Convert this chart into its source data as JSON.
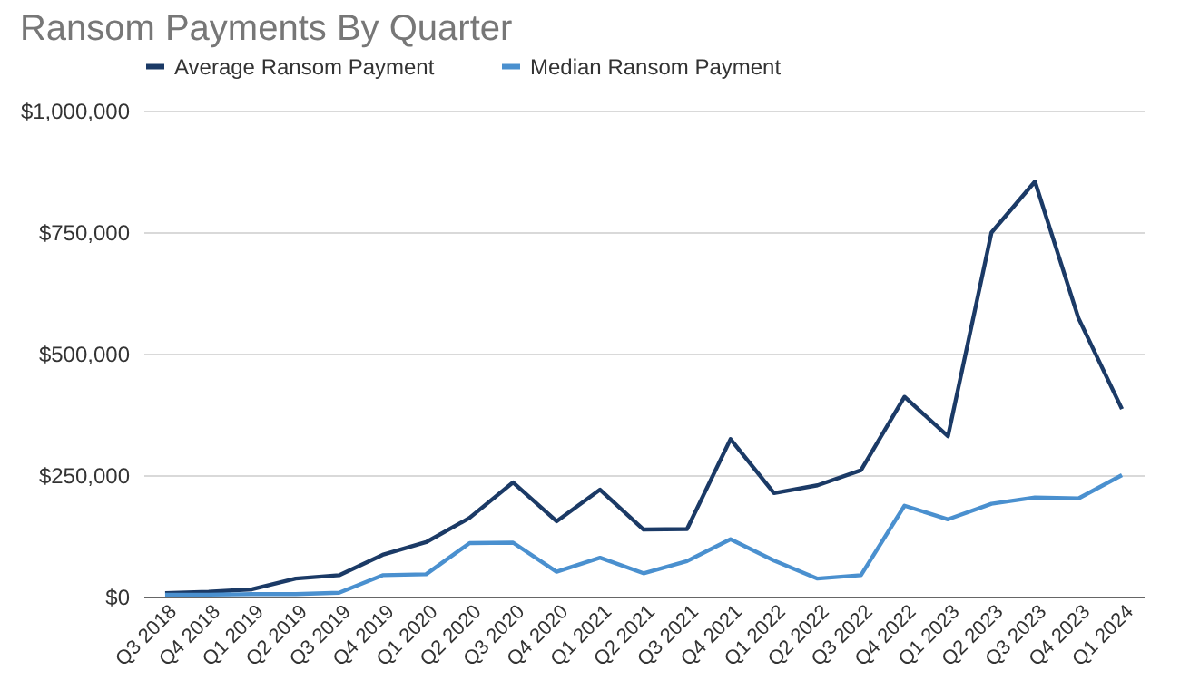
{
  "chart_data": {
    "type": "line",
    "title": "Ransom Payments By Quarter",
    "categories": [
      "Q3 2018",
      "Q4 2018",
      "Q1 2019",
      "Q2 2019",
      "Q3 2019",
      "Q4 2019",
      "Q1 2020",
      "Q2 2020",
      "Q3 2020",
      "Q4 2020",
      "Q1 2021",
      "Q2 2021",
      "Q3 2021",
      "Q4 2021",
      "Q1 2022",
      "Q2 2022",
      "Q3 2022",
      "Q4 2022",
      "Q1 2023",
      "Q2 2023",
      "Q3 2023",
      "Q4 2023",
      "Q1 2024"
    ],
    "series": [
      {
        "name": "Average Ransom Payment",
        "color": "#1b3a66",
        "values": [
          7000,
          10000,
          15000,
          37000,
          44000,
          86000,
          112000,
          162000,
          235000,
          155000,
          220000,
          138000,
          139000,
          324000,
          213000,
          229000,
          260000,
          411000,
          330000,
          749000,
          854000,
          573000,
          386000
        ]
      },
      {
        "name": "Median Ransom Payment",
        "color": "#4a90cf",
        "values": [
          4000,
          4000,
          5000,
          5000,
          8000,
          44000,
          46000,
          110000,
          111000,
          51000,
          80000,
          48000,
          73000,
          118000,
          74000,
          37000,
          44000,
          187000,
          159000,
          191000,
          204000,
          202000,
          250000
        ]
      }
    ],
    "ylim": [
      0,
      1000000
    ],
    "yticks": [
      {
        "value": 0,
        "label": "$0"
      },
      {
        "value": 250000,
        "label": "$250,000"
      },
      {
        "value": 500000,
        "label": "$500,000"
      },
      {
        "value": 750000,
        "label": "$750,000"
      },
      {
        "value": 1000000,
        "label": "$1,000,000"
      }
    ],
    "grid": "y",
    "legend": "top",
    "marker": "none",
    "line_style": "solid"
  }
}
